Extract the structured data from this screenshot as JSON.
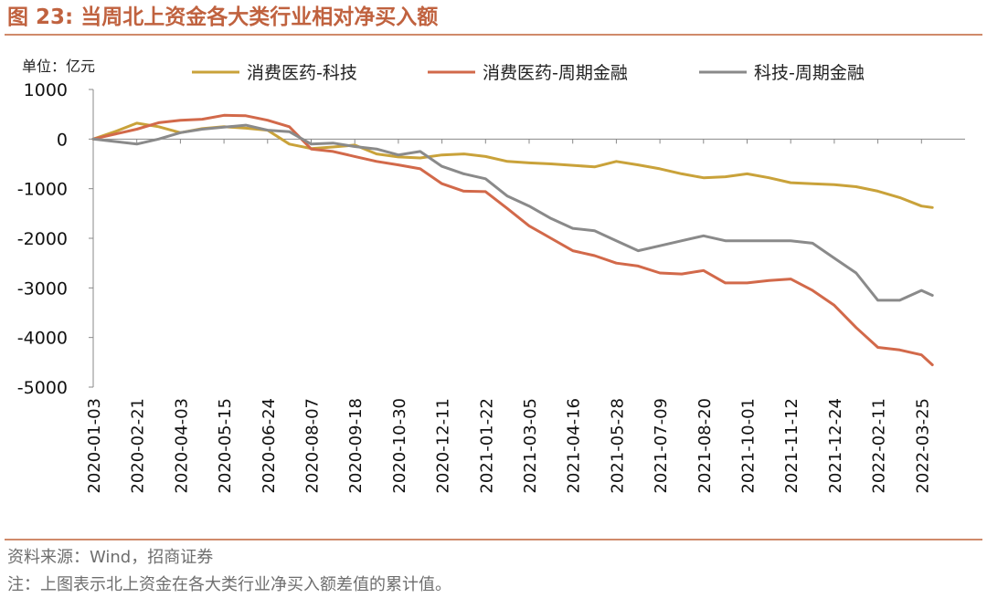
{
  "figure": {
    "title_label": "图 23:",
    "title_text": "当周北上资金各大类行业相对净买入额",
    "source": "资料来源：Wind，招商证券",
    "note": "注：上图表示北上资金在各大类行业净买入额差值的累计值。"
  },
  "colors": {
    "accent": "#c0623f",
    "rule": "#d08a6a",
    "series_1": "#c9a23a",
    "series_2": "#d2694a",
    "series_3": "#8a8a8a"
  },
  "chart_data": {
    "type": "line",
    "title": "当周北上资金各大类行业相对净买入额",
    "unit_label": "单位：亿元",
    "ylim": [
      -5000,
      1000
    ],
    "yticks": [
      1000,
      0,
      -1000,
      -2000,
      -3000,
      -4000,
      -5000
    ],
    "grid": false,
    "legend_position": "top",
    "xticks": [
      "2020-01-03",
      "2020-02-21",
      "2020-04-03",
      "2020-05-15",
      "2020-06-24",
      "2020-08-07",
      "2020-09-18",
      "2020-10-30",
      "2020-12-11",
      "2021-01-22",
      "2021-03-05",
      "2021-04-16",
      "2021-05-28",
      "2021-07-09",
      "2021-08-20",
      "2021-10-01",
      "2021-11-12",
      "2021-12-24",
      "2022-02-11",
      "2022-03-25"
    ],
    "x_end": 19.25,
    "series": [
      {
        "name": "消费医药-科技",
        "x": [
          0,
          0.5,
          1,
          1.5,
          2,
          2.5,
          3,
          3.5,
          4,
          4.5,
          5,
          5.5,
          6,
          6.5,
          7,
          7.5,
          8,
          8.5,
          9,
          9.5,
          10,
          10.5,
          11,
          11.5,
          12,
          12.5,
          13,
          13.5,
          14,
          14.5,
          15,
          15.5,
          16,
          16.5,
          17,
          17.5,
          18,
          18.5,
          19,
          19.25
        ],
        "values": [
          0,
          150,
          320,
          250,
          130,
          210,
          250,
          220,
          180,
          -100,
          -190,
          -160,
          -120,
          -300,
          -360,
          -380,
          -320,
          -300,
          -350,
          -450,
          -480,
          -500,
          -530,
          -560,
          -450,
          -520,
          -600,
          -700,
          -780,
          -760,
          -700,
          -780,
          -880,
          -900,
          -920,
          -960,
          -1050,
          -1180,
          -1350,
          -1380
        ]
      },
      {
        "name": "消费医药-周期金融",
        "x": [
          0,
          0.5,
          1,
          1.5,
          2,
          2.5,
          3,
          3.5,
          4,
          4.5,
          5,
          5.5,
          6,
          6.5,
          7,
          7.5,
          8,
          8.5,
          9,
          9.5,
          10,
          10.5,
          11,
          11.5,
          12,
          12.5,
          13,
          13.5,
          14,
          14.5,
          15,
          15.5,
          16,
          16.5,
          17,
          17.5,
          18,
          18.5,
          19,
          19.25
        ],
        "values": [
          0,
          100,
          200,
          330,
          380,
          400,
          480,
          470,
          380,
          250,
          -200,
          -250,
          -350,
          -450,
          -520,
          -600,
          -900,
          -1050,
          -1060,
          -1400,
          -1750,
          -2000,
          -2250,
          -2350,
          -2500,
          -2560,
          -2700,
          -2720,
          -2650,
          -2900,
          -2900,
          -2850,
          -2820,
          -3050,
          -3350,
          -3800,
          -4200,
          -4250,
          -4350,
          -4550
        ]
      },
      {
        "name": "科技-周期金融",
        "x": [
          0,
          0.5,
          1,
          1.5,
          2,
          2.5,
          3,
          3.5,
          4,
          4.5,
          5,
          5.5,
          6,
          6.5,
          7,
          7.5,
          8,
          8.5,
          9,
          9.5,
          10,
          10.5,
          11,
          11.5,
          12,
          12.5,
          13,
          13.5,
          14,
          14.5,
          15,
          15.5,
          16,
          16.5,
          17,
          17.5,
          18,
          18.5,
          19,
          19.25
        ],
        "values": [
          0,
          -50,
          -100,
          0,
          130,
          200,
          240,
          280,
          180,
          150,
          -100,
          -80,
          -150,
          -200,
          -320,
          -250,
          -550,
          -700,
          -800,
          -1150,
          -1350,
          -1600,
          -1800,
          -1850,
          -2050,
          -2250,
          -2150,
          -2050,
          -1950,
          -2050,
          -2050,
          -2050,
          -2050,
          -2100,
          -2400,
          -2700,
          -3250,
          -3250,
          -3050,
          -3150
        ]
      }
    ]
  }
}
